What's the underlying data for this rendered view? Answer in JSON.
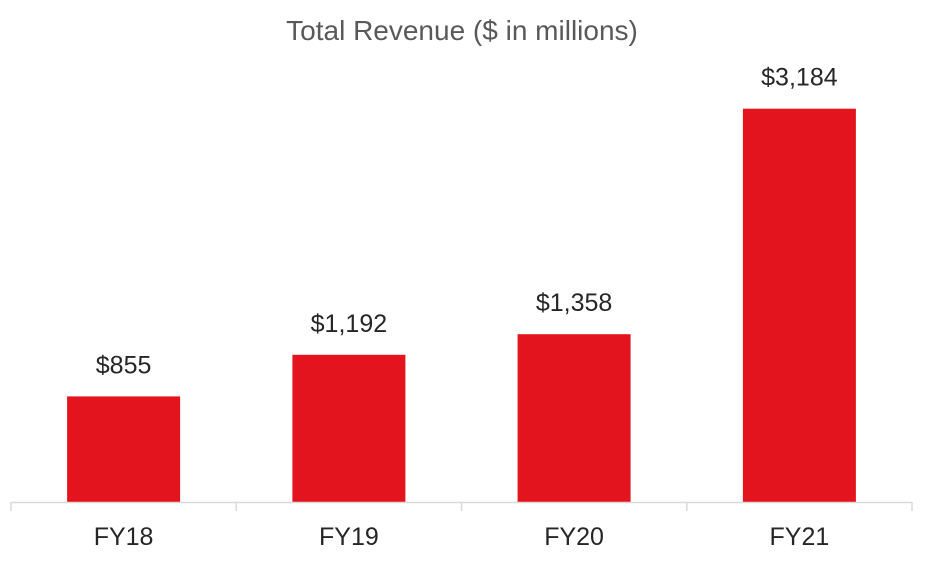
{
  "chart_data": {
    "type": "bar",
    "title": "Total Revenue ($ in millions)",
    "xlabel": "",
    "ylabel": "",
    "categories": [
      "FY18",
      "FY19",
      "FY20",
      "FY21"
    ],
    "values": [
      855,
      1192,
      1358,
      3184
    ],
    "data_labels": [
      "$855",
      "$1,192",
      "$1,358",
      "$3,184"
    ],
    "ylim": [
      0,
      3400
    ],
    "grid": false,
    "legend": "none",
    "colors": {
      "bar": "#E3141D",
      "axis": "#D9D9D9",
      "title": "#595959",
      "text": "#262626"
    }
  }
}
